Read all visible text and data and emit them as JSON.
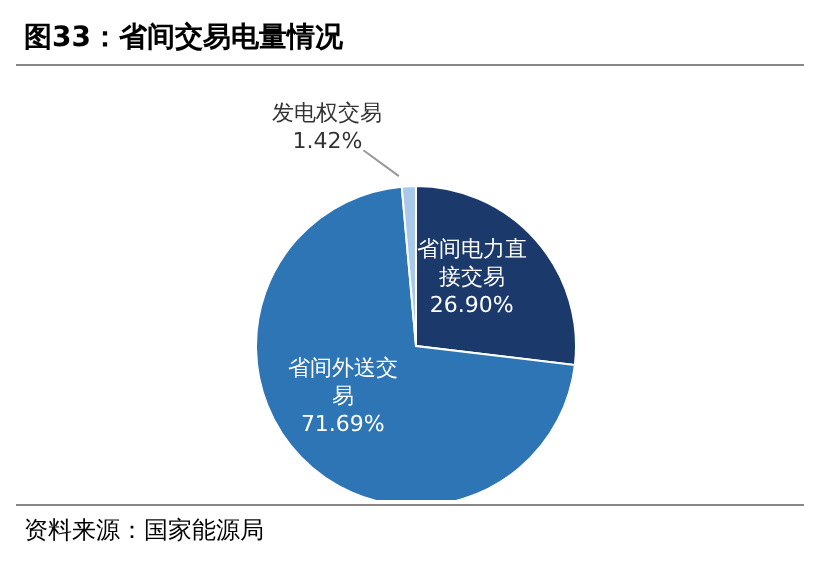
{
  "chart_data": {
    "type": "pie",
    "title": "图33：省间交易电量情况",
    "categories": [
      "省间电力直接交易",
      "省间外送交易",
      "发电权交易"
    ],
    "values": [
      26.9,
      71.69,
      1.42
    ],
    "value_labels": [
      "26.90%",
      "71.69%",
      "1.42%"
    ],
    "colors": [
      "#1b3a6b",
      "#2e75b6",
      "#a9c8ea"
    ],
    "annotations": [
      "资料来源：国家能源局"
    ]
  }
}
